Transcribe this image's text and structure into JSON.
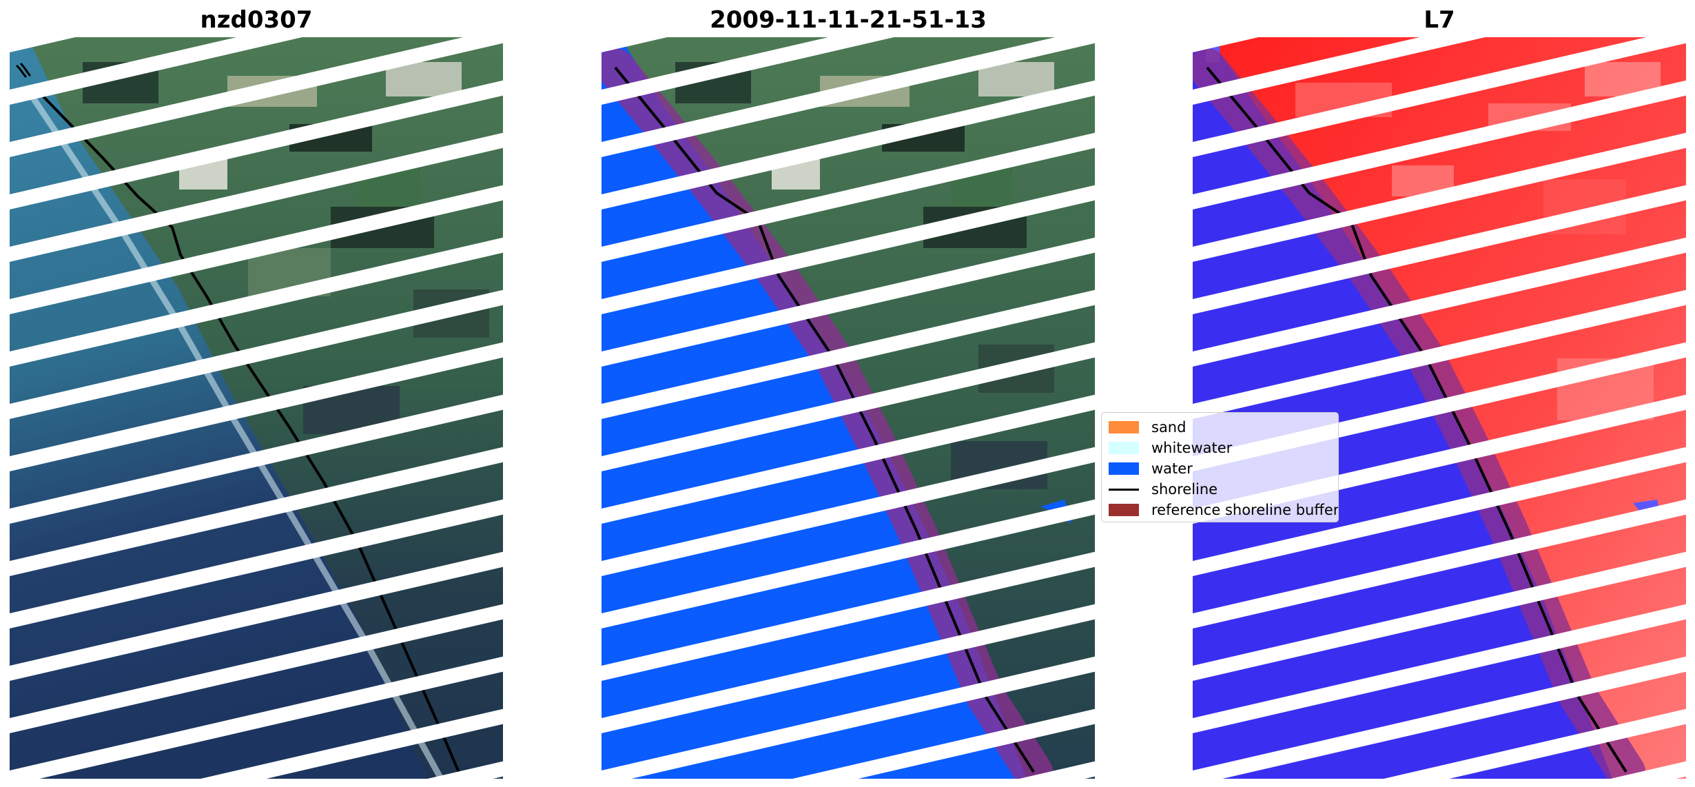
{
  "panels": [
    {
      "title": "nzd0307",
      "content": "RGB satellite image"
    },
    {
      "title": "2009-11-11-21-51-13",
      "content": "classified image"
    },
    {
      "title": "L7",
      "content": "MNDWI image"
    }
  ],
  "legend": {
    "items": [
      {
        "label": "sand",
        "color": "#ff8c3a",
        "kind": "patch"
      },
      {
        "label": "whitewater",
        "color": "#d6ffff",
        "kind": "patch"
      },
      {
        "label": "water",
        "color": "#0a5cff",
        "kind": "patch"
      },
      {
        "label": "shoreline",
        "color": "#000000",
        "kind": "line"
      },
      {
        "label": "reference shoreline buffer",
        "color": "#9b2f2f",
        "kind": "patch"
      }
    ]
  },
  "colors": {
    "gap_stripe": "#ffffff",
    "land_green": "#3c6a4e",
    "ocean_teal": "#2e6d8e",
    "ocean_deep": "#1c3b63",
    "water_blue": "#0a5cff",
    "buffer_purple": "#8a2f8f",
    "mndwi_red": "#ff2b2b",
    "mndwi_blue": "#3a2ff0"
  }
}
